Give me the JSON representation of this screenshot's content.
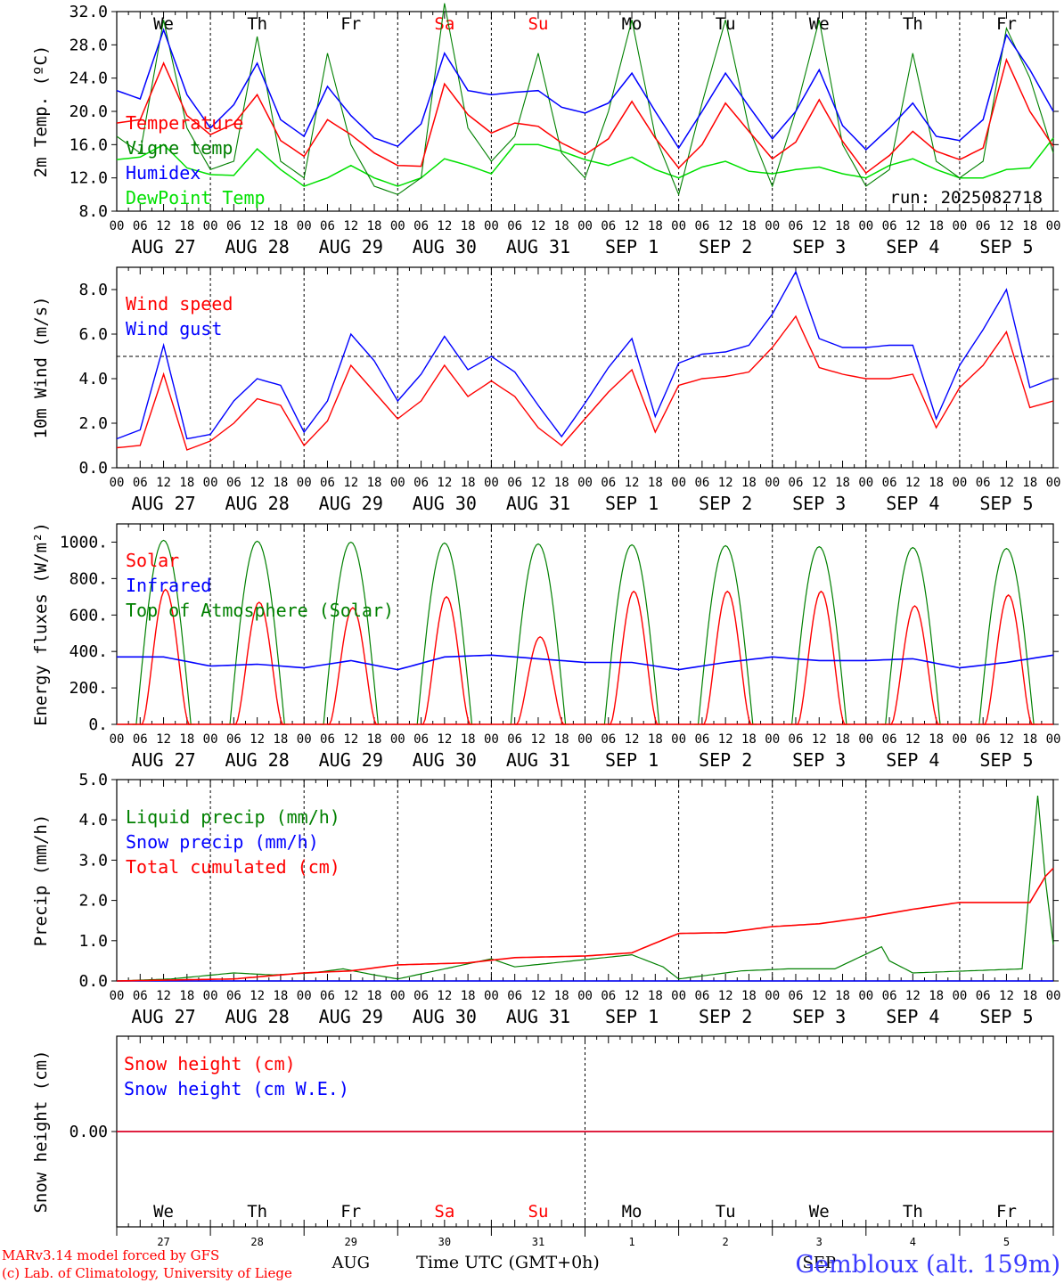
{
  "chart_data": [
    {
      "type": "line",
      "ylabel": "2m Temp. (ºC)",
      "ylim": [
        8,
        32
      ],
      "yticks": [
        "8.0",
        "12.0",
        "16.0",
        "20.0",
        "24.0",
        "28.0",
        "32.0"
      ],
      "legend": "top-left",
      "run_label": "run: 2025082718",
      "x_hours": [
        0,
        6,
        12,
        18,
        24,
        30,
        36,
        42,
        48,
        54,
        60,
        66,
        72,
        78,
        84,
        90,
        96,
        102,
        108,
        114,
        120,
        126,
        132,
        138,
        144,
        150,
        156,
        162,
        168,
        174,
        180,
        186,
        192,
        198,
        204,
        210,
        216,
        222,
        228,
        234,
        240
      ],
      "series": [
        {
          "name": "Temperature",
          "color": "#ff0000",
          "values": [
            18.6,
            19.0,
            25.8,
            19.5,
            17.2,
            18.5,
            22.0,
            16.5,
            14.6,
            19.0,
            17.2,
            15.0,
            13.5,
            13.4,
            23.3,
            19.6,
            17.4,
            18.6,
            18.2,
            16.2,
            14.8,
            16.7,
            21.2,
            16.8,
            13.2,
            16.0,
            21.0,
            17.6,
            14.3,
            16.3,
            21.4,
            16.4,
            12.6,
            14.7,
            17.6,
            15.2,
            14.2,
            15.6,
            26.2,
            20.0,
            15.8
          ]
        },
        {
          "name": "Vigne temp",
          "color": "#008000",
          "values": [
            17.0,
            15.0,
            31.0,
            18.0,
            13.0,
            14.0,
            29.0,
            14.0,
            12.0,
            27.0,
            16.0,
            11.0,
            10.0,
            12.0,
            33.0,
            18.0,
            14.0,
            17.0,
            27.0,
            15.0,
            12.0,
            20.0,
            31.0,
            17.0,
            10.0,
            21.0,
            31.0,
            18.0,
            11.0,
            20.0,
            31.0,
            16.0,
            11.0,
            13.0,
            27.0,
            14.0,
            12.0,
            14.0,
            30.0,
            24.0,
            15.0
          ]
        },
        {
          "name": "Humidex",
          "color": "#0000ff",
          "values": [
            22.5,
            21.5,
            29.8,
            22.0,
            18.0,
            20.8,
            25.8,
            19.0,
            17.0,
            23.0,
            19.5,
            16.8,
            15.8,
            18.5,
            27.0,
            22.5,
            22.0,
            22.3,
            22.5,
            20.5,
            19.8,
            21.0,
            24.6,
            20.0,
            15.6,
            20.0,
            24.6,
            20.6,
            16.7,
            20.0,
            25.0,
            18.3,
            15.4,
            18.0,
            21.0,
            17.0,
            16.5,
            19.0,
            29.2,
            25.0,
            20.0
          ]
        },
        {
          "name": "DewPoint Temp",
          "color": "#00e000",
          "values": [
            14.2,
            14.5,
            16.0,
            13.2,
            12.4,
            12.3,
            15.5,
            13.0,
            11.0,
            12.0,
            13.5,
            12.0,
            11.0,
            12.0,
            14.3,
            13.5,
            12.5,
            16.0,
            16.0,
            15.2,
            14.2,
            13.5,
            14.5,
            13.0,
            12.0,
            13.3,
            14.0,
            12.8,
            12.5,
            13.0,
            13.3,
            12.5,
            12.0,
            13.5,
            14.3,
            13.0,
            12.0,
            12.0,
            13.0,
            13.2,
            16.8
          ]
        }
      ]
    },
    {
      "type": "line",
      "ylabel": "10m Wind (m/s)",
      "ylim": [
        0,
        9
      ],
      "yticks": [
        "0.0",
        "2.0",
        "4.0",
        "6.0",
        "8.0"
      ],
      "reference_line": 5.0,
      "legend": "top-left",
      "x_hours": [
        0,
        6,
        12,
        18,
        24,
        30,
        36,
        42,
        48,
        54,
        60,
        66,
        72,
        78,
        84,
        90,
        96,
        102,
        108,
        114,
        120,
        126,
        132,
        138,
        144,
        150,
        156,
        162,
        168,
        174,
        180,
        186,
        192,
        198,
        204,
        210,
        216,
        222,
        228,
        234,
        240
      ],
      "series": [
        {
          "name": "Wind speed",
          "color": "#ff0000",
          "values": [
            0.9,
            1.0,
            4.2,
            0.8,
            1.2,
            2.0,
            3.1,
            2.8,
            1.0,
            2.1,
            4.6,
            3.4,
            2.2,
            3.0,
            4.6,
            3.2,
            3.9,
            3.2,
            1.8,
            1.0,
            2.2,
            3.4,
            4.4,
            1.6,
            3.7,
            4.0,
            4.1,
            4.3,
            5.4,
            6.8,
            4.5,
            4.2,
            4.0,
            4.0,
            4.2,
            1.8,
            3.6,
            4.6,
            6.1,
            2.7,
            3.0
          ]
        },
        {
          "name": "Wind gust",
          "color": "#0000ff",
          "values": [
            1.3,
            1.7,
            5.5,
            1.3,
            1.5,
            3.0,
            4.0,
            3.7,
            1.6,
            3.0,
            6.0,
            4.8,
            3.0,
            4.2,
            5.9,
            4.4,
            5.0,
            4.3,
            2.8,
            1.4,
            2.9,
            4.5,
            5.8,
            2.3,
            4.7,
            5.1,
            5.2,
            5.5,
            6.9,
            8.8,
            5.8,
            5.4,
            5.4,
            5.5,
            5.5,
            2.2,
            4.6,
            6.2,
            8.0,
            3.6,
            4.0
          ]
        }
      ]
    },
    {
      "type": "line",
      "ylabel": "Energy fluxes (W/m²)",
      "ylim": [
        0,
        1100
      ],
      "yticks": [
        "0.",
        "200.",
        "400.",
        "600.",
        "800.",
        "1000."
      ],
      "legend": "top-left",
      "series": [
        {
          "name": "Solar",
          "color": "#ff0000",
          "day_peaks": [
            740,
            670,
            640,
            700,
            480,
            730,
            730,
            730,
            650,
            710
          ]
        },
        {
          "name": "Infrared",
          "color": "#0000ff",
          "x_hours": [
            0,
            12,
            24,
            36,
            48,
            60,
            72,
            84,
            96,
            108,
            120,
            132,
            144,
            156,
            168,
            180,
            192,
            204,
            216,
            228,
            240
          ],
          "values": [
            370,
            370,
            320,
            330,
            310,
            350,
            300,
            370,
            380,
            360,
            340,
            340,
            300,
            340,
            370,
            350,
            350,
            360,
            310,
            340,
            380
          ]
        },
        {
          "name": "Top of Atmosphere (Solar)",
          "color": "#008000",
          "day_peaks": [
            1010,
            1005,
            1000,
            995,
            990,
            985,
            980,
            975,
            970,
            965
          ]
        }
      ]
    },
    {
      "type": "line",
      "ylabel": "Precip (mm/h)",
      "ylim": [
        0,
        5
      ],
      "yticks": [
        "0.0",
        "1.0",
        "2.0",
        "3.0",
        "4.0",
        "5.0"
      ],
      "legend": "top-left",
      "series": [
        {
          "name": "Liquid precip (mm/h)",
          "color": "#008000",
          "x_hours": [
            0,
            14,
            30,
            40,
            50,
            58,
            66,
            72,
            96,
            102,
            132,
            140,
            144,
            160,
            172,
            184,
            196,
            198,
            204,
            232,
            236,
            238,
            240
          ],
          "values": [
            0,
            0.05,
            0.2,
            0.15,
            0.2,
            0.3,
            0.15,
            0.05,
            0.55,
            0.35,
            0.65,
            0.35,
            0.05,
            0.25,
            0.3,
            0.3,
            0.85,
            0.5,
            0.2,
            0.3,
            4.6,
            2.5,
            0.9
          ]
        },
        {
          "name": "Snow precip (mm/h)",
          "color": "#0000ff",
          "values": [
            0
          ]
        },
        {
          "name": "Total cumulated (cm)",
          "color": "#ff0000",
          "x_hours": [
            0,
            30,
            48,
            60,
            72,
            90,
            102,
            120,
            132,
            144,
            156,
            168,
            180,
            192,
            204,
            216,
            228,
            234,
            238,
            240
          ],
          "values": [
            0.0,
            0.05,
            0.2,
            0.25,
            0.4,
            0.45,
            0.58,
            0.62,
            0.7,
            1.18,
            1.2,
            1.35,
            1.42,
            1.58,
            1.78,
            1.95,
            1.95,
            1.95,
            2.6,
            2.8
          ]
        }
      ]
    },
    {
      "type": "line",
      "ylabel": "Snow height (cm)",
      "ytick": "0.00",
      "legend": "top-left",
      "series": [
        {
          "name": "Snow height (cm)",
          "color": "#ff0000",
          "values": [
            0.0,
            0.0
          ]
        },
        {
          "name": "Snow height (cm W.E.)",
          "color": "#0000ff",
          "values": [
            0.0,
            0.0
          ]
        }
      ]
    }
  ],
  "x_axis": {
    "hour_ticks": [
      "00",
      "06",
      "12",
      "18"
    ],
    "dates": [
      "AUG 27",
      "AUG 28",
      "AUG 29",
      "AUG 30",
      "AUG 31",
      "SEP  1",
      "SEP  2",
      "SEP  3",
      "SEP  4",
      "SEP  5"
    ],
    "weekdays": [
      "We",
      "Th",
      "Fr",
      "Sa",
      "Su",
      "Mo",
      "Tu",
      "We",
      "Th",
      "Fr"
    ],
    "weekend_color": "#ff0000",
    "day_numbers": [
      "27",
      "28",
      "29",
      "30",
      "31",
      "1",
      "2",
      "3",
      "4",
      "5"
    ],
    "month_aug": "AUG",
    "month_sep": "SEP"
  },
  "footer": {
    "model": "MARv3.14 model forced by GFS",
    "credit": "(c) Lab. of Climatology, University of Liege",
    "time_label": "Time UTC (GMT+0h)",
    "station": "Gembloux (alt. 159m)"
  }
}
